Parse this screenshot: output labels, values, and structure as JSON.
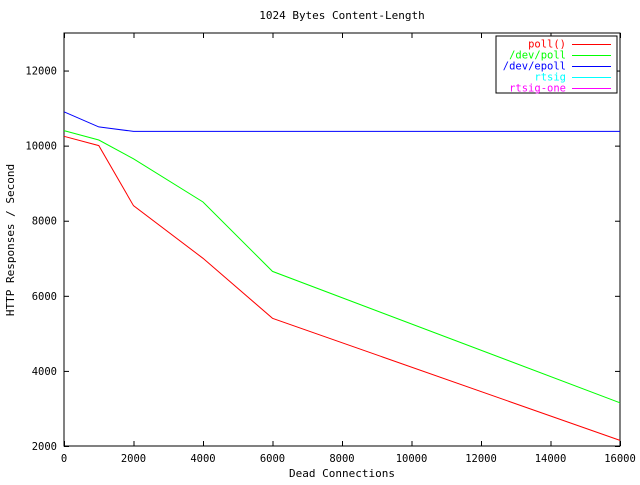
{
  "chart_data": {
    "type": "line",
    "title": "1024 Bytes Content-Length",
    "xlabel": "Dead Connections",
    "ylabel": "HTTP Responses / Second",
    "xlim": [
      0,
      16000
    ],
    "ylim": [
      2000,
      13000
    ],
    "x_ticks": [
      0,
      2000,
      4000,
      6000,
      8000,
      10000,
      12000,
      14000,
      16000
    ],
    "y_ticks": [
      2000,
      4000,
      6000,
      8000,
      10000,
      12000
    ],
    "grid": false,
    "legend_position": "top-right",
    "series": [
      {
        "name": "poll()",
        "color": "#ff0000",
        "points": [
          [
            0,
            10250
          ],
          [
            1000,
            10000
          ],
          [
            2000,
            8400
          ],
          [
            4000,
            7000
          ],
          [
            6000,
            5400
          ],
          [
            16000,
            2150
          ]
        ]
      },
      {
        "name": "/dev/poll",
        "color": "#00ff00",
        "points": [
          [
            0,
            10400
          ],
          [
            1000,
            10150
          ],
          [
            2000,
            9650
          ],
          [
            4000,
            8500
          ],
          [
            6000,
            6650
          ],
          [
            16000,
            3150
          ]
        ]
      },
      {
        "name": "/dev/epoll",
        "color": "#0000ff",
        "points": [
          [
            0,
            10900
          ],
          [
            1000,
            10500
          ],
          [
            2000,
            10380
          ],
          [
            4000,
            10380
          ],
          [
            6000,
            10380
          ],
          [
            16000,
            10380
          ]
        ]
      },
      {
        "name": "rtsig",
        "color": "#00ffff",
        "points": []
      },
      {
        "name": "rtsig-one",
        "color": "#ff00ff",
        "points": []
      }
    ]
  }
}
